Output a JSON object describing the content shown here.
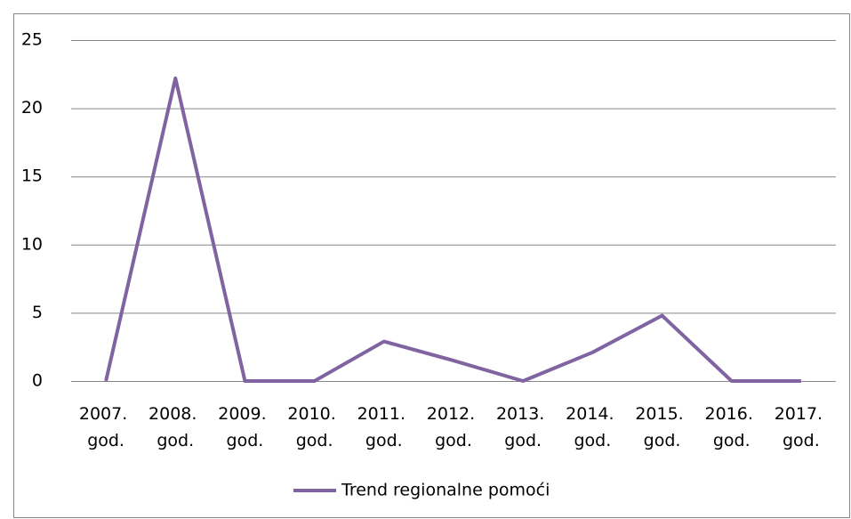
{
  "chart_data": {
    "type": "line",
    "categories": [
      "2007. god.",
      "2008. god.",
      "2009. god.",
      "2010. god.",
      "2011. god.",
      "2012. god.",
      "2013. god.",
      "2014. god.",
      "2015. god.",
      "2016. god.",
      "2017. god."
    ],
    "series": [
      {
        "name": "Trend regionalne pomoći",
        "color": "#8064a2",
        "values": [
          0,
          22.2,
          0,
          0,
          2.9,
          1.5,
          0,
          2.1,
          4.8,
          0,
          0
        ]
      }
    ],
    "ylim": [
      0,
      25
    ],
    "yticks": [
      0,
      5,
      10,
      15,
      20,
      25
    ],
    "grid": true,
    "legend": "bottom"
  }
}
